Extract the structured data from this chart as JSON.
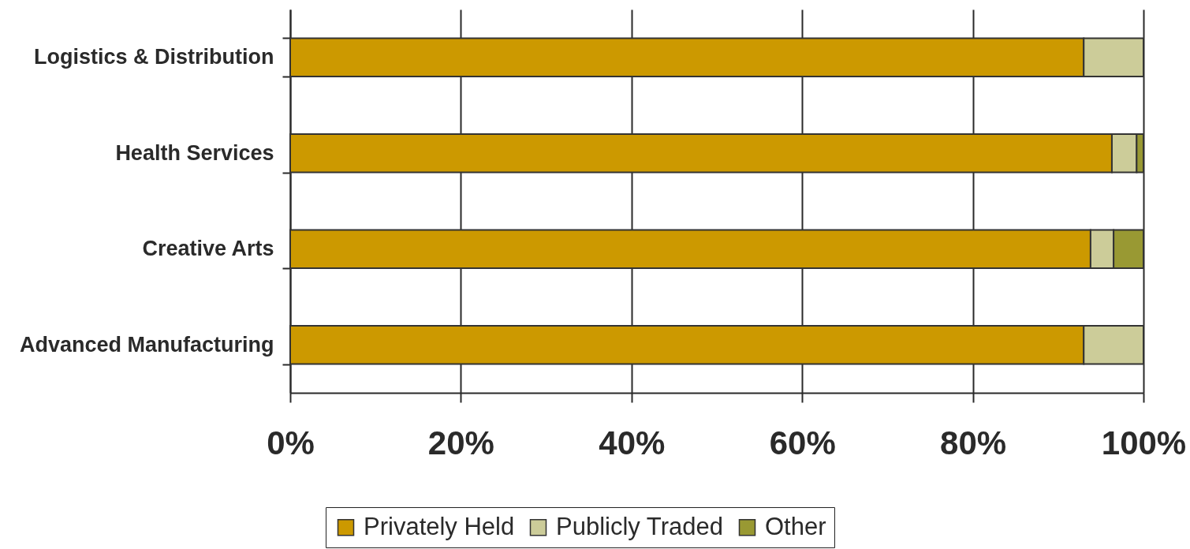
{
  "chart_data": {
    "type": "bar",
    "orientation": "horizontal",
    "stacked": true,
    "categories": [
      "Logistics & Distribution",
      "Health Services",
      "Creative Arts",
      "Advanced Manufacturing"
    ],
    "series": [
      {
        "name": "Privately Held",
        "color": "#cc9900",
        "values": [
          93.0,
          96.3,
          93.8,
          93.0
        ]
      },
      {
        "name": "Publicly Traded",
        "color": "#cccc99",
        "values": [
          7.0,
          2.9,
          2.7,
          7.0
        ]
      },
      {
        "name": "Other",
        "color": "#999933",
        "values": [
          null,
          0.8,
          3.5,
          null
        ]
      }
    ],
    "xlim": [
      0,
      100
    ],
    "xticks": [
      {
        "value": 0,
        "label": "0%"
      },
      {
        "value": 20,
        "label": "20%"
      },
      {
        "value": 40,
        "label": "40%"
      },
      {
        "value": 60,
        "label": "60%"
      },
      {
        "value": 80,
        "label": "80%"
      },
      {
        "value": 100,
        "label": "100%"
      }
    ],
    "grid": "x",
    "legend": "bottom"
  }
}
